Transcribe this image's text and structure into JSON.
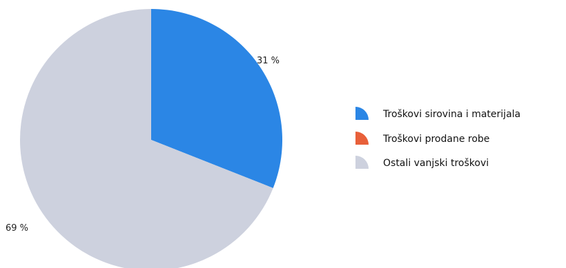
{
  "chart_data": {
    "type": "pie",
    "slices": [
      {
        "name": "Troškovi sirovina i materijala",
        "value": 31,
        "label": "31 %",
        "color": "#2b86e5"
      },
      {
        "name": "Troškovi prodane robe",
        "value": 0,
        "label": "",
        "color": "#e8603a"
      },
      {
        "name": "Ostali vanjski troškovi",
        "value": 69,
        "label": "69 %",
        "color": "#cdd1de"
      }
    ],
    "legend_position": "right",
    "start_angle": "top, clockwise"
  }
}
